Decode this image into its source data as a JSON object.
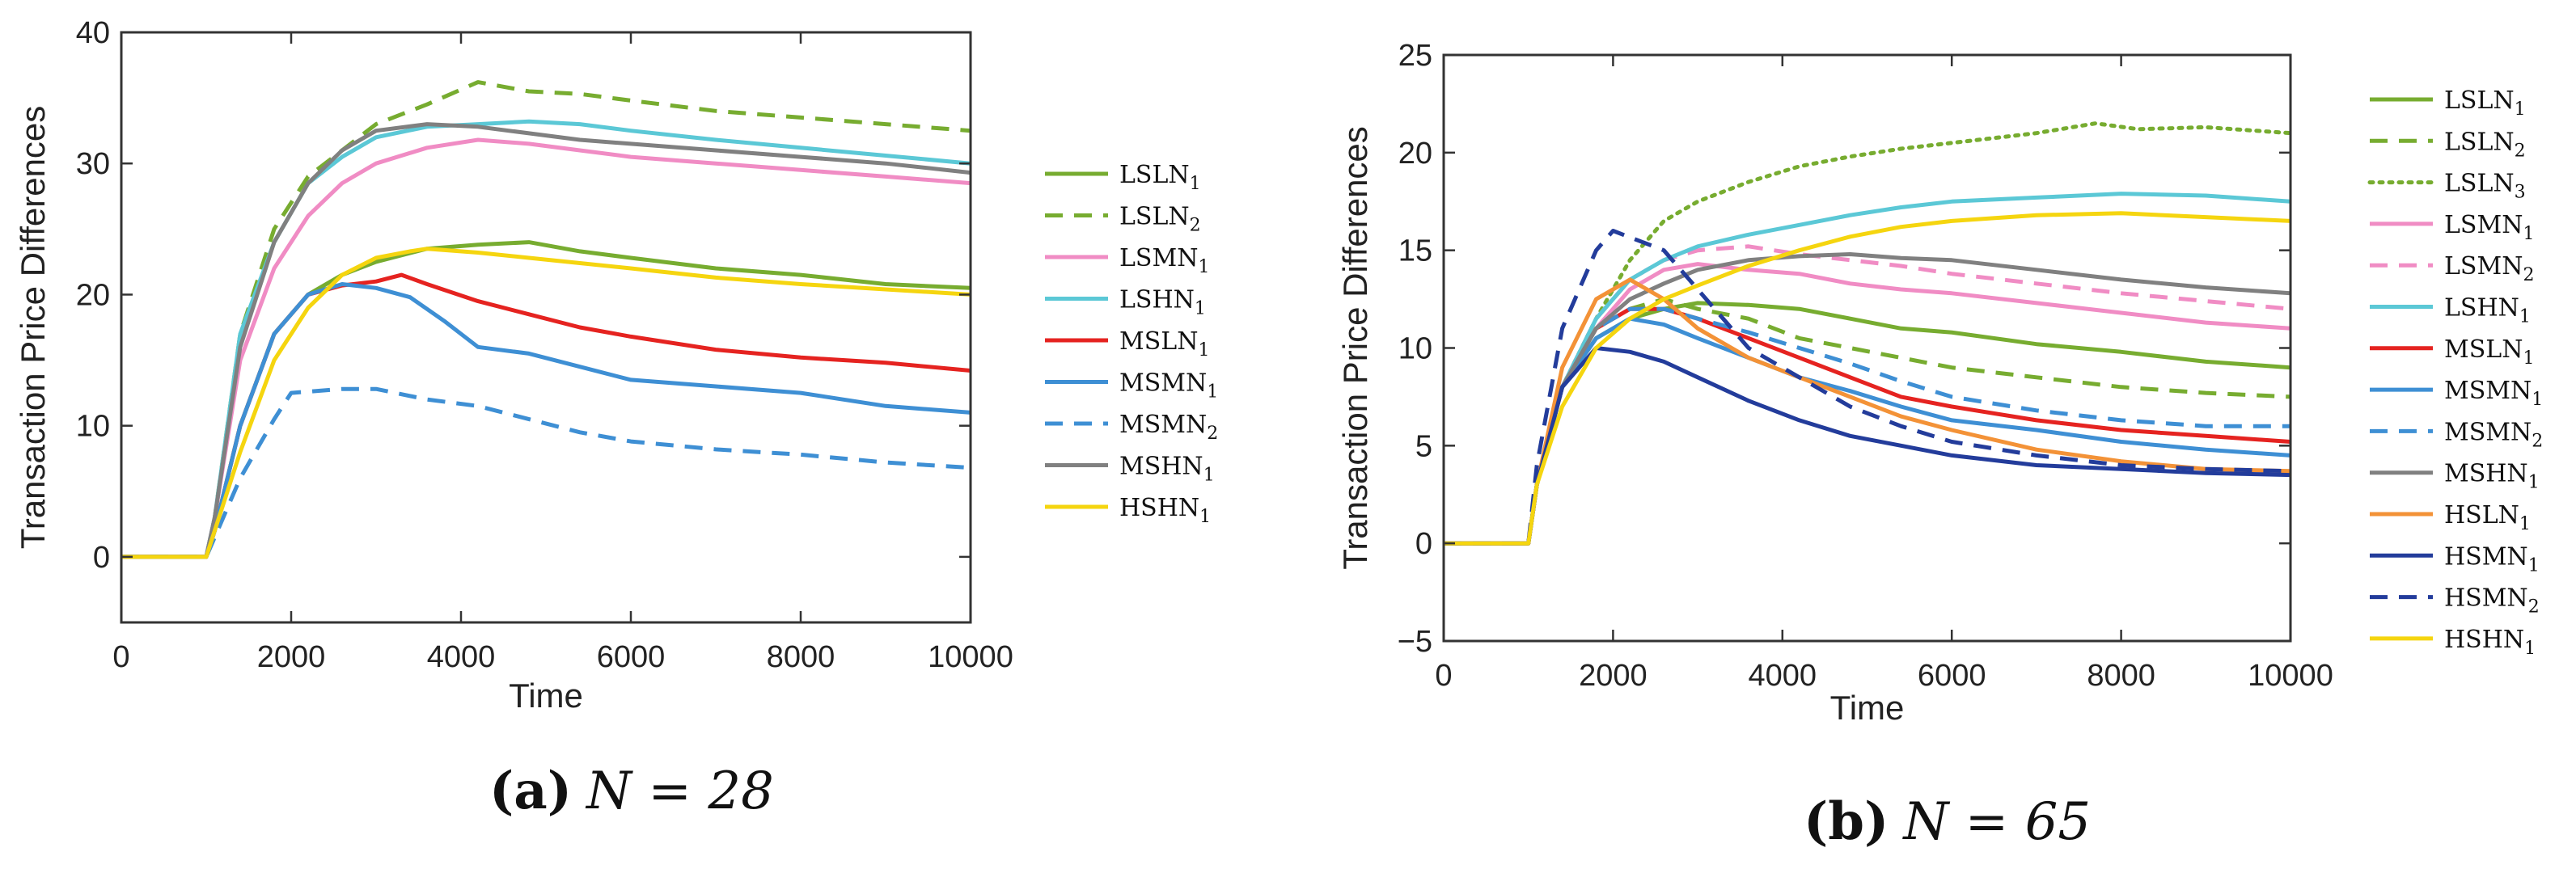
{
  "chart_data": [
    {
      "type": "line",
      "caption_letter": "(a)",
      "caption_eq": "N = 28",
      "xlabel": "Time",
      "ylabel": "Transaction Price Differences",
      "xlim": [
        0,
        10000
      ],
      "ylim": [
        -5,
        40
      ],
      "xticks": [
        0,
        2000,
        4000,
        6000,
        8000,
        10000
      ],
      "yticks": [
        0,
        10,
        20,
        30,
        40
      ],
      "grid": false,
      "legend_position": "outside-right",
      "series": [
        {
          "name": "LSLN1",
          "base": "LSLN",
          "sub": "1",
          "color": "#77AC30",
          "dash": "solid",
          "x": [
            0,
            1000,
            1100,
            1400,
            1800,
            2200,
            2600,
            3000,
            3600,
            4200,
            4800,
            5400,
            6000,
            7000,
            8000,
            9000,
            10000
          ],
          "y": [
            0,
            0,
            2,
            10,
            17,
            20,
            21.5,
            22.5,
            23.5,
            23.8,
            24,
            23.3,
            22.8,
            22,
            21.5,
            20.8,
            20.5
          ]
        },
        {
          "name": "LSLN2",
          "base": "LSLN",
          "sub": "2",
          "color": "#77AC30",
          "dash": "dashed",
          "x": [
            0,
            1000,
            1100,
            1400,
            1800,
            2200,
            2600,
            3000,
            3600,
            4200,
            4800,
            5400,
            6000,
            7000,
            8000,
            9000,
            10000
          ],
          "y": [
            0,
            0,
            3,
            17,
            25,
            29,
            31,
            33,
            34.5,
            36.2,
            35.5,
            35.3,
            34.8,
            34,
            33.5,
            33,
            32.5
          ]
        },
        {
          "name": "LSMN1",
          "base": "LSMN",
          "sub": "1",
          "color": "#F08CC4",
          "dash": "solid",
          "x": [
            0,
            1000,
            1100,
            1400,
            1800,
            2200,
            2600,
            3000,
            3600,
            4200,
            4800,
            5400,
            6000,
            7000,
            8000,
            9000,
            10000
          ],
          "y": [
            0,
            0,
            3,
            15,
            22,
            26,
            28.5,
            30,
            31.2,
            31.8,
            31.5,
            31,
            30.5,
            30,
            29.5,
            29,
            28.5
          ]
        },
        {
          "name": "LSHN1",
          "base": "LSHN",
          "sub": "1",
          "color": "#5BC8D6",
          "dash": "solid",
          "x": [
            0,
            1000,
            1100,
            1400,
            1800,
            2200,
            2600,
            3000,
            3600,
            4200,
            4800,
            5400,
            6000,
            7000,
            8000,
            9000,
            10000
          ],
          "y": [
            0,
            0,
            3,
            17,
            24,
            28.5,
            30.5,
            32,
            32.8,
            33,
            33.2,
            33,
            32.5,
            31.8,
            31.2,
            30.6,
            30
          ]
        },
        {
          "name": "MSLN1",
          "base": "MSLN",
          "sub": "1",
          "color": "#E52320",
          "dash": "solid",
          "x": [
            0,
            1000,
            1100,
            1400,
            1800,
            2200,
            2600,
            3000,
            3300,
            3600,
            4200,
            4800,
            5400,
            6000,
            7000,
            8000,
            9000,
            10000
          ],
          "y": [
            0,
            0,
            2,
            10,
            17,
            20,
            20.7,
            21,
            21.5,
            20.8,
            19.5,
            18.5,
            17.5,
            16.8,
            15.8,
            15.2,
            14.8,
            14.2
          ]
        },
        {
          "name": "MSMN1",
          "base": "MSMN",
          "sub": "1",
          "color": "#3E8FD4",
          "dash": "solid",
          "x": [
            0,
            1000,
            1100,
            1400,
            1800,
            2200,
            2600,
            3000,
            3400,
            3800,
            4200,
            4800,
            5400,
            6000,
            7000,
            8000,
            9000,
            10000
          ],
          "y": [
            0,
            0,
            2,
            10,
            17,
            20,
            20.8,
            20.5,
            19.8,
            18,
            16,
            15.5,
            14.5,
            13.5,
            13,
            12.5,
            11.5,
            11
          ]
        },
        {
          "name": "MSMN2",
          "base": "MSMN",
          "sub": "2",
          "color": "#3E8FD4",
          "dash": "dashed",
          "x": [
            0,
            1000,
            1100,
            1400,
            1800,
            2000,
            2600,
            3000,
            3600,
            4200,
            4800,
            5400,
            6000,
            7000,
            8000,
            9000,
            10000
          ],
          "y": [
            0,
            0,
            1.5,
            6,
            10.5,
            12.5,
            12.8,
            12.8,
            12,
            11.5,
            10.5,
            9.5,
            8.8,
            8.2,
            7.8,
            7.2,
            6.8
          ]
        },
        {
          "name": "MSHN1",
          "base": "MSHN",
          "sub": "1",
          "color": "#808080",
          "dash": "solid",
          "x": [
            0,
            1000,
            1100,
            1400,
            1800,
            2200,
            2600,
            3000,
            3600,
            4200,
            4800,
            5400,
            6000,
            7000,
            8000,
            9000,
            10000
          ],
          "y": [
            0,
            0,
            3,
            16,
            24,
            28.5,
            31,
            32.5,
            33,
            32.8,
            32.3,
            31.8,
            31.5,
            31,
            30.5,
            30,
            29.3
          ]
        },
        {
          "name": "HSHN1",
          "base": "HSHN",
          "sub": "1",
          "color": "#F5D50F",
          "dash": "solid",
          "x": [
            0,
            1000,
            1100,
            1400,
            1800,
            2200,
            2600,
            3000,
            3400,
            3600,
            4200,
            4800,
            5400,
            6000,
            7000,
            8000,
            9000,
            10000
          ],
          "y": [
            0,
            0,
            2,
            8,
            15,
            19,
            21.5,
            22.8,
            23.3,
            23.5,
            23.2,
            22.8,
            22.4,
            22,
            21.3,
            20.8,
            20.4,
            20
          ]
        }
      ]
    },
    {
      "type": "line",
      "caption_letter": "(b)",
      "caption_eq": "N = 65",
      "xlabel": "Time",
      "ylabel": "Transaction Price Differences",
      "xlim": [
        0,
        10000
      ],
      "ylim": [
        -5,
        25
      ],
      "xticks": [
        0,
        2000,
        4000,
        6000,
        8000,
        10000
      ],
      "yticks": [
        -5,
        0,
        5,
        10,
        15,
        20,
        25
      ],
      "ytick_labels": [
        "−5",
        "0",
        "5",
        "10",
        "15",
        "20",
        "25"
      ],
      "grid": false,
      "legend_position": "outside-right",
      "series": [
        {
          "name": "LSLN1",
          "base": "LSLN",
          "sub": "1",
          "color": "#77AC30",
          "dash": "solid",
          "x": [
            0,
            1000,
            1100,
            1400,
            1800,
            2200,
            2600,
            3000,
            3600,
            4200,
            4800,
            5400,
            6000,
            7000,
            8000,
            9000,
            10000
          ],
          "y": [
            0,
            0,
            3,
            8,
            10.5,
            11.5,
            12,
            12.3,
            12.2,
            12,
            11.5,
            11,
            10.8,
            10.2,
            9.8,
            9.3,
            9
          ]
        },
        {
          "name": "LSLN2",
          "base": "LSLN",
          "sub": "2",
          "color": "#77AC30",
          "dash": "dashed",
          "x": [
            0,
            1000,
            1100,
            1400,
            1800,
            2200,
            2600,
            3000,
            3600,
            4200,
            4800,
            5400,
            6000,
            7000,
            8000,
            9000,
            10000
          ],
          "y": [
            0,
            0,
            3,
            8,
            11,
            12,
            12.5,
            12,
            11.5,
            10.5,
            10,
            9.5,
            9,
            8.5,
            8,
            7.7,
            7.5
          ]
        },
        {
          "name": "LSLN3",
          "base": "LSLN",
          "sub": "3",
          "color": "#77AC30",
          "dash": "dotted",
          "x": [
            0,
            1000,
            1100,
            1400,
            1800,
            2200,
            2600,
            3000,
            3600,
            4200,
            4800,
            5400,
            6000,
            7000,
            7700,
            8200,
            9000,
            10000
          ],
          "y": [
            0,
            0,
            3,
            8,
            11.5,
            14.5,
            16.5,
            17.5,
            18.5,
            19.3,
            19.8,
            20.2,
            20.5,
            21,
            21.5,
            21.2,
            21.3,
            21
          ]
        },
        {
          "name": "LSMN1",
          "base": "LSMN",
          "sub": "1",
          "color": "#F08CC4",
          "dash": "solid",
          "x": [
            0,
            1000,
            1100,
            1400,
            1800,
            2200,
            2600,
            3000,
            3600,
            4200,
            4800,
            5400,
            6000,
            7000,
            8000,
            9000,
            10000
          ],
          "y": [
            0,
            0,
            3,
            8,
            11,
            13,
            14,
            14.3,
            14,
            13.8,
            13.3,
            13,
            12.8,
            12.3,
            11.8,
            11.3,
            11
          ]
        },
        {
          "name": "LSMN2",
          "base": "LSMN",
          "sub": "2",
          "color": "#F08CC4",
          "dash": "dashed",
          "x": [
            0,
            1000,
            1100,
            1400,
            1800,
            2200,
            2600,
            3000,
            3600,
            4200,
            4800,
            5400,
            6000,
            7000,
            8000,
            9000,
            10000
          ],
          "y": [
            0,
            0,
            3,
            8,
            11.5,
            13.5,
            14.5,
            15,
            15.2,
            14.8,
            14.5,
            14.2,
            13.8,
            13.3,
            12.8,
            12.4,
            12
          ]
        },
        {
          "name": "LSHN1",
          "base": "LSHN",
          "sub": "1",
          "color": "#5BC8D6",
          "dash": "solid",
          "x": [
            0,
            1000,
            1100,
            1400,
            1800,
            2200,
            2600,
            3000,
            3600,
            4200,
            4800,
            5400,
            6000,
            7000,
            8000,
            9000,
            10000
          ],
          "y": [
            0,
            0,
            3,
            8,
            11.5,
            13.5,
            14.5,
            15.2,
            15.8,
            16.3,
            16.8,
            17.2,
            17.5,
            17.7,
            17.9,
            17.8,
            17.5
          ]
        },
        {
          "name": "MSLN1",
          "base": "MSLN",
          "sub": "1",
          "color": "#E52320",
          "dash": "solid",
          "x": [
            0,
            1000,
            1100,
            1400,
            1800,
            2200,
            2600,
            3000,
            3600,
            4200,
            4800,
            5400,
            6000,
            7000,
            8000,
            9000,
            10000
          ],
          "y": [
            0,
            0,
            3,
            8,
            11,
            12,
            12,
            11.5,
            10.5,
            9.5,
            8.5,
            7.5,
            7,
            6.3,
            5.8,
            5.5,
            5.2
          ]
        },
        {
          "name": "MSMN1",
          "base": "MSMN",
          "sub": "1",
          "color": "#3E8FD4",
          "dash": "solid",
          "x": [
            0,
            1000,
            1100,
            1400,
            1800,
            2200,
            2600,
            3000,
            3600,
            4200,
            4800,
            5400,
            6000,
            7000,
            8000,
            9000,
            10000
          ],
          "y": [
            0,
            0,
            3,
            8,
            10.5,
            11.5,
            11.2,
            10.5,
            9.5,
            8.5,
            7.8,
            7,
            6.3,
            5.8,
            5.2,
            4.8,
            4.5
          ]
        },
        {
          "name": "MSMN2",
          "base": "MSMN",
          "sub": "2",
          "color": "#3E8FD4",
          "dash": "dashed",
          "x": [
            0,
            1000,
            1100,
            1400,
            1800,
            2200,
            2600,
            3000,
            3600,
            4200,
            4800,
            5400,
            6000,
            7000,
            8000,
            9000,
            10000
          ],
          "y": [
            0,
            0,
            3,
            8,
            11,
            12,
            12,
            11.5,
            10.8,
            10,
            9.2,
            8.3,
            7.5,
            6.8,
            6.3,
            6,
            6
          ]
        },
        {
          "name": "MSHN1",
          "base": "MSHN",
          "sub": "1",
          "color": "#808080",
          "dash": "solid",
          "x": [
            0,
            1000,
            1100,
            1400,
            1800,
            2200,
            2600,
            3000,
            3600,
            4200,
            4800,
            5400,
            6000,
            7000,
            8000,
            9000,
            10000
          ],
          "y": [
            0,
            0,
            3,
            8,
            11,
            12.5,
            13.3,
            14,
            14.5,
            14.7,
            14.8,
            14.6,
            14.5,
            14,
            13.5,
            13.1,
            12.8
          ]
        },
        {
          "name": "HSLN1",
          "base": "HSLN",
          "sub": "1",
          "color": "#F39237",
          "dash": "solid",
          "x": [
            0,
            1000,
            1100,
            1400,
            1800,
            2200,
            2600,
            3000,
            3600,
            4200,
            4800,
            5400,
            6000,
            7000,
            8000,
            9000,
            10000
          ],
          "y": [
            0,
            0,
            3,
            9,
            12.5,
            13.5,
            12.5,
            11,
            9.5,
            8.5,
            7.5,
            6.5,
            5.8,
            4.8,
            4.2,
            3.8,
            3.7
          ]
        },
        {
          "name": "HSMN1",
          "base": "HSMN",
          "sub": "1",
          "color": "#233C9B",
          "dash": "solid",
          "x": [
            0,
            1000,
            1100,
            1400,
            1800,
            2200,
            2600,
            3000,
            3600,
            4200,
            4800,
            5400,
            6000,
            7000,
            8000,
            9000,
            10000
          ],
          "y": [
            0,
            0,
            3,
            8,
            10,
            9.8,
            9.3,
            8.5,
            7.3,
            6.3,
            5.5,
            5,
            4.5,
            4,
            3.8,
            3.6,
            3.5
          ]
        },
        {
          "name": "HSMN2",
          "base": "HSMN",
          "sub": "2",
          "color": "#233C9B",
          "dash": "dashed",
          "x": [
            0,
            1000,
            1100,
            1400,
            1800,
            2000,
            2300,
            2600,
            3000,
            3600,
            4200,
            4800,
            5400,
            6000,
            7000,
            8000,
            9000,
            10000
          ],
          "y": [
            0,
            0,
            4,
            11,
            15,
            16,
            15.5,
            15,
            13,
            10,
            8.5,
            7,
            6,
            5.2,
            4.5,
            4,
            3.8,
            3.7
          ]
        },
        {
          "name": "HSHN1",
          "base": "HSHN",
          "sub": "1",
          "color": "#F5D50F",
          "dash": "solid",
          "x": [
            0,
            1000,
            1100,
            1400,
            1800,
            2200,
            2600,
            3000,
            3600,
            4200,
            4800,
            5400,
            6000,
            7000,
            8000,
            9000,
            10000
          ],
          "y": [
            0,
            0,
            3,
            7,
            10,
            11.5,
            12.5,
            13.2,
            14.2,
            15,
            15.7,
            16.2,
            16.5,
            16.8,
            16.9,
            16.7,
            16.5
          ]
        }
      ]
    }
  ]
}
